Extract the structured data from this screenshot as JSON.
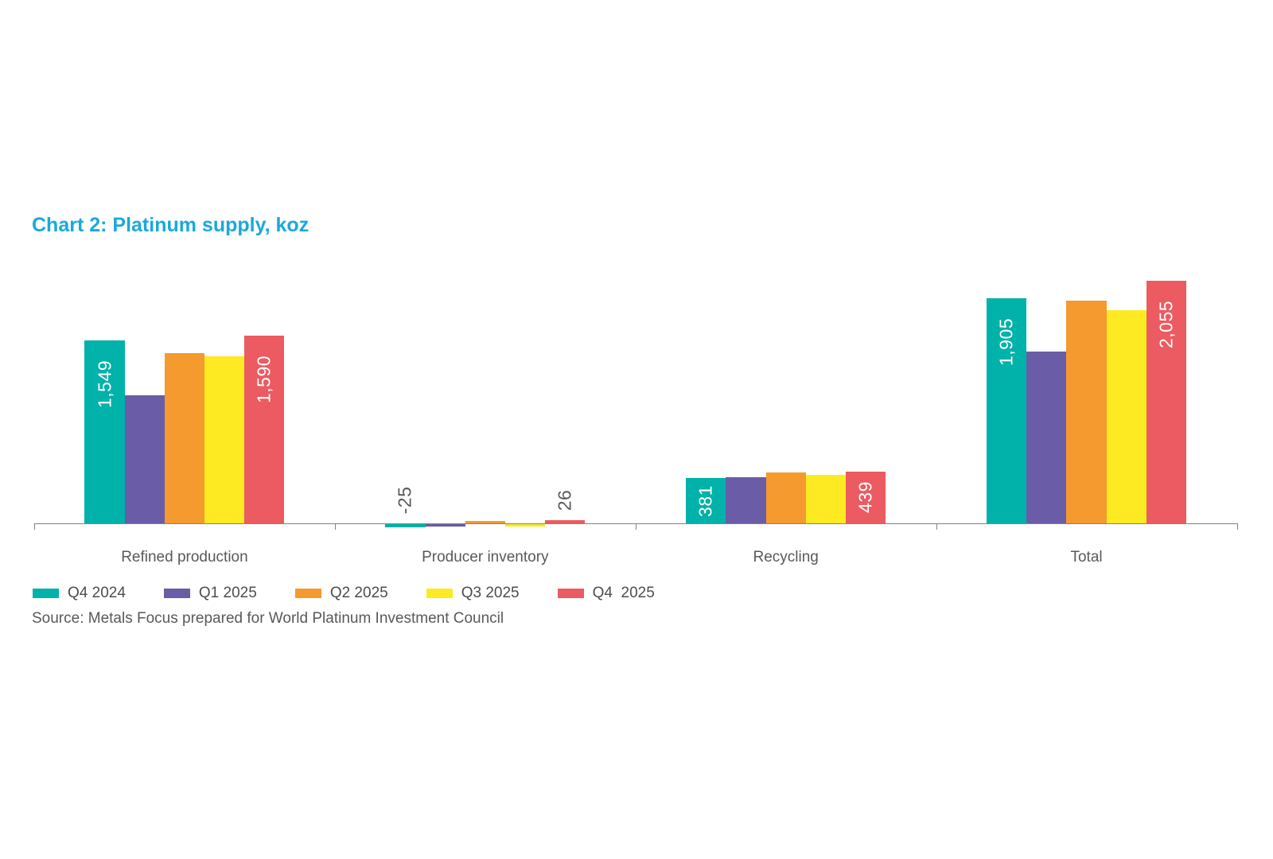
{
  "chart_data": {
    "type": "bar",
    "title": "Chart 2: Platinum supply, koz",
    "title_color": "#1BA8DB",
    "categories": [
      "Refined production",
      "Producer inventory",
      "Recycling",
      "Total"
    ],
    "series": [
      {
        "name": "Q4 2024",
        "color": "#00B2A9",
        "values": [
          1549,
          -25,
          381,
          1905
        ],
        "labels": [
          "1,549",
          "-25",
          "381",
          "1,905"
        ]
      },
      {
        "name": "Q1 2025",
        "color": "#6B5CA7",
        "values": [
          1086,
          -20,
          392,
          1458
        ]
      },
      {
        "name": "Q2 2025",
        "color": "#F49A2E",
        "values": [
          1445,
          15,
          430,
          1890
        ]
      },
      {
        "name": "Q3 2025",
        "color": "#FDEA22",
        "values": [
          1416,
          -20,
          408,
          1804
        ]
      },
      {
        "name": "Q4  2025",
        "color": "#EB5B61",
        "values": [
          1590,
          26,
          439,
          2055
        ],
        "labels": [
          "1,590",
          "26",
          "439",
          "2,055"
        ]
      }
    ],
    "ylim": [
      -60,
      2150
    ],
    "grid": false,
    "value_axis_visible": false,
    "legend_position": "bottom",
    "axis_color": "#808285",
    "category_label_color": "#58595B",
    "label_color_inside": "#FFFFFF",
    "label_color_outside": "#58595B",
    "legend_text_color": "#4D4D4F",
    "data_labels_shown_for": [
      "Q4 2024",
      "Q4  2025"
    ]
  },
  "source_note": "Source: Metals Focus prepared for World Platinum Investment Council",
  "source_note_color": "#58595B"
}
